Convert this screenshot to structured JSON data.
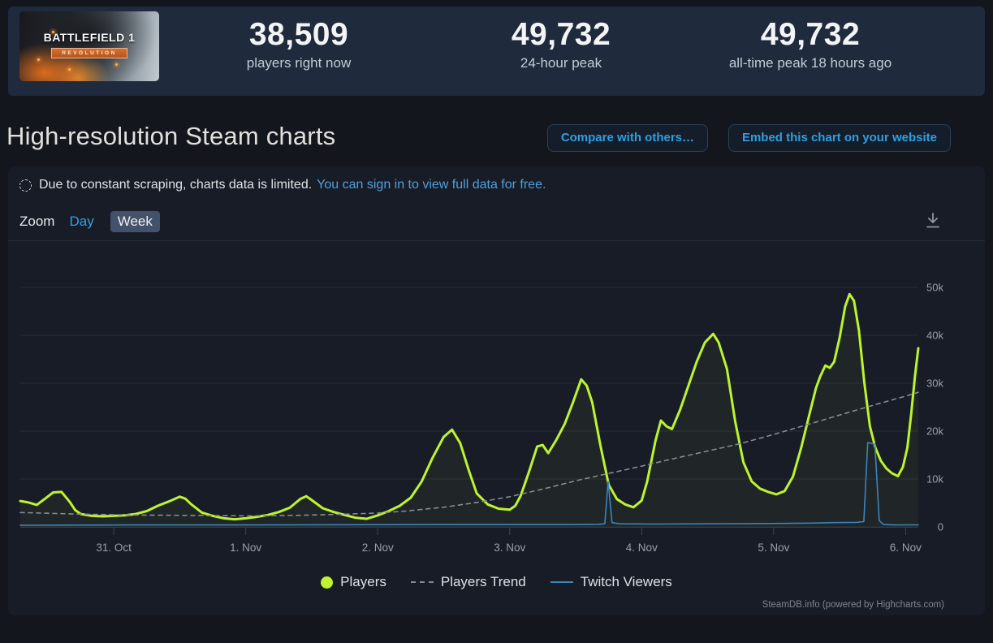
{
  "header": {
    "game_title": "BATTLEFIELD 1",
    "game_subtitle": "REVOLUTION",
    "stats": [
      {
        "value": "38,509",
        "label": "players right now"
      },
      {
        "value": "49,732",
        "label": "24-hour peak"
      },
      {
        "value": "49,732",
        "label": "all-time peak 18 hours ago"
      }
    ]
  },
  "page": {
    "title": "High-resolution Steam charts",
    "buttons": [
      {
        "label": "Compare with others…"
      },
      {
        "label": "Embed this chart on your website"
      }
    ]
  },
  "notice": {
    "text": "Due to constant scraping, charts data is limited.",
    "link": "You can sign in to view full data for free."
  },
  "controls": {
    "zoom_label": "Zoom",
    "day": "Day",
    "week": "Week"
  },
  "attribution": "SteamDB.info (powered by Highcharts.com)",
  "colors": {
    "players": "#bdf32f",
    "players_trend": "#848b94",
    "twitch": "#3b84be",
    "grid": "#262d3a",
    "axis": "#343d4b",
    "tick_label": "#99a1a8",
    "accent_blue": "#30a2ea",
    "header_bg": "#1f2a3c",
    "panel_bg": "#181c27",
    "page_bg": "#13161d"
  },
  "chart_data": {
    "type": "line",
    "title": "",
    "xlabel": "",
    "ylabel": "",
    "x_unit": "hours from chart start (chart spans 30 Oct ~07:00 to 6 Nov ~02:00)",
    "ylim": [
      0,
      58000
    ],
    "grid": true,
    "legend_position": "bottom-center",
    "yticks": [
      {
        "v": 0,
        "label": "0"
      },
      {
        "v": 10000,
        "label": "10k"
      },
      {
        "v": 20000,
        "label": "20k"
      },
      {
        "v": 30000,
        "label": "30k"
      },
      {
        "v": 40000,
        "label": "40k"
      },
      {
        "v": 50000,
        "label": "50k"
      }
    ],
    "xticks": [
      {
        "t": 17,
        "label": "31. Oct"
      },
      {
        "t": 41,
        "label": "1. Nov"
      },
      {
        "t": 65,
        "label": "2. Nov"
      },
      {
        "t": 89,
        "label": "3. Nov"
      },
      {
        "t": 113,
        "label": "4. Nov"
      },
      {
        "t": 137,
        "label": "5. Nov"
      },
      {
        "t": 161,
        "label": "6. Nov"
      }
    ],
    "series": [
      {
        "name": "Players",
        "color": "#bdf32f",
        "style": "solid",
        "width": 3,
        "points": [
          [
            0,
            5400
          ],
          [
            1.5,
            5100
          ],
          [
            3,
            4600
          ],
          [
            4.5,
            5900
          ],
          [
            6,
            7200
          ],
          [
            7.5,
            7300
          ],
          [
            9,
            5200
          ],
          [
            10,
            3500
          ],
          [
            11,
            2700
          ],
          [
            13,
            2300
          ],
          [
            15,
            2200
          ],
          [
            17,
            2300
          ],
          [
            19,
            2400
          ],
          [
            21,
            2700
          ],
          [
            23,
            3300
          ],
          [
            25,
            4400
          ],
          [
            27,
            5300
          ],
          [
            29,
            6300
          ],
          [
            30,
            5900
          ],
          [
            31,
            4800
          ],
          [
            33,
            3000
          ],
          [
            35,
            2300
          ],
          [
            37,
            1800
          ],
          [
            39,
            1600
          ],
          [
            41,
            1800
          ],
          [
            43,
            2100
          ],
          [
            45,
            2500
          ],
          [
            47,
            3100
          ],
          [
            49,
            4000
          ],
          [
            51,
            5900
          ],
          [
            52,
            6400
          ],
          [
            53,
            5600
          ],
          [
            55,
            3900
          ],
          [
            57,
            3100
          ],
          [
            59,
            2500
          ],
          [
            61,
            1900
          ],
          [
            63,
            1700
          ],
          [
            65,
            2400
          ],
          [
            67,
            3300
          ],
          [
            69,
            4400
          ],
          [
            71,
            6100
          ],
          [
            73,
            9500
          ],
          [
            75,
            14500
          ],
          [
            77,
            18800
          ],
          [
            78.5,
            20300
          ],
          [
            80,
            17500
          ],
          [
            81.5,
            12000
          ],
          [
            83,
            7000
          ],
          [
            85,
            4700
          ],
          [
            87,
            3800
          ],
          [
            89,
            3600
          ],
          [
            90,
            4400
          ],
          [
            91,
            6500
          ],
          [
            92.5,
            11500
          ],
          [
            94,
            16800
          ],
          [
            95,
            17100
          ],
          [
            96,
            15400
          ],
          [
            97.5,
            18200
          ],
          [
            99,
            21500
          ],
          [
            100.5,
            26000
          ],
          [
            102,
            30800
          ],
          [
            103,
            29500
          ],
          [
            104,
            26000
          ],
          [
            105.5,
            17000
          ],
          [
            107,
            8800
          ],
          [
            108.5,
            5800
          ],
          [
            110,
            4700
          ],
          [
            111.5,
            4100
          ],
          [
            113,
            5500
          ],
          [
            114,
            9500
          ],
          [
            115.5,
            18000
          ],
          [
            116.5,
            22200
          ],
          [
            117.5,
            21000
          ],
          [
            118.5,
            20400
          ],
          [
            120,
            24500
          ],
          [
            121.5,
            29500
          ],
          [
            123,
            34500
          ],
          [
            124.5,
            38500
          ],
          [
            126,
            40300
          ],
          [
            127,
            38500
          ],
          [
            128.5,
            33000
          ],
          [
            130,
            22000
          ],
          [
            131.5,
            13500
          ],
          [
            133,
            9500
          ],
          [
            134.5,
            8000
          ],
          [
            136,
            7300
          ],
          [
            137.5,
            6800
          ],
          [
            139,
            7500
          ],
          [
            140.5,
            10500
          ],
          [
            142,
            16500
          ],
          [
            143.5,
            23500
          ],
          [
            144.7,
            29000
          ],
          [
            145.5,
            31500
          ],
          [
            146.4,
            33700
          ],
          [
            147.2,
            33200
          ],
          [
            148,
            34500
          ],
          [
            149,
            39500
          ],
          [
            150,
            46000
          ],
          [
            150.8,
            48600
          ],
          [
            151.6,
            47200
          ],
          [
            152.5,
            41000
          ],
          [
            153.5,
            30000
          ],
          [
            154.5,
            21000
          ],
          [
            155.5,
            16500
          ],
          [
            156.5,
            13800
          ],
          [
            157.5,
            12200
          ],
          [
            158.5,
            11200
          ],
          [
            159.6,
            10600
          ],
          [
            160.5,
            12500
          ],
          [
            161.3,
            16500
          ],
          [
            162,
            23500
          ],
          [
            162.7,
            31500
          ],
          [
            163.3,
            37300
          ]
        ]
      },
      {
        "name": "Players Trend",
        "color": "#848b94",
        "style": "dashed",
        "width": 1.6,
        "points": [
          [
            0,
            3000
          ],
          [
            10,
            2700
          ],
          [
            20,
            2500
          ],
          [
            30,
            2400
          ],
          [
            41,
            2300
          ],
          [
            50,
            2400
          ],
          [
            60,
            2700
          ],
          [
            65,
            2900
          ],
          [
            70,
            3300
          ],
          [
            77,
            4100
          ],
          [
            83,
            5100
          ],
          [
            89,
            6300
          ],
          [
            95,
            7900
          ],
          [
            102,
            9900
          ],
          [
            108,
            11400
          ],
          [
            113,
            12700
          ],
          [
            119,
            14300
          ],
          [
            126,
            16100
          ],
          [
            131,
            17400
          ],
          [
            137,
            19300
          ],
          [
            143,
            21300
          ],
          [
            150,
            23700
          ],
          [
            156,
            25700
          ],
          [
            161,
            27300
          ],
          [
            163.3,
            28100
          ]
        ]
      },
      {
        "name": "Twitch Viewers",
        "color": "#3b84be",
        "style": "solid",
        "width": 1.6,
        "points": [
          [
            0,
            350
          ],
          [
            20,
            400
          ],
          [
            40,
            400
          ],
          [
            60,
            450
          ],
          [
            80,
            500
          ],
          [
            100,
            500
          ],
          [
            105,
            550
          ],
          [
            106.3,
            650
          ],
          [
            106.9,
            9500
          ],
          [
            107.6,
            900
          ],
          [
            109,
            650
          ],
          [
            115,
            600
          ],
          [
            125,
            650
          ],
          [
            135,
            700
          ],
          [
            144,
            800
          ],
          [
            148,
            900
          ],
          [
            152,
            950
          ],
          [
            153.4,
            1100
          ],
          [
            154.1,
            17600
          ],
          [
            155.4,
            17300
          ],
          [
            156.2,
            1300
          ],
          [
            157,
            500
          ],
          [
            159,
            400
          ],
          [
            161,
            420
          ],
          [
            163.3,
            420
          ]
        ]
      }
    ]
  }
}
